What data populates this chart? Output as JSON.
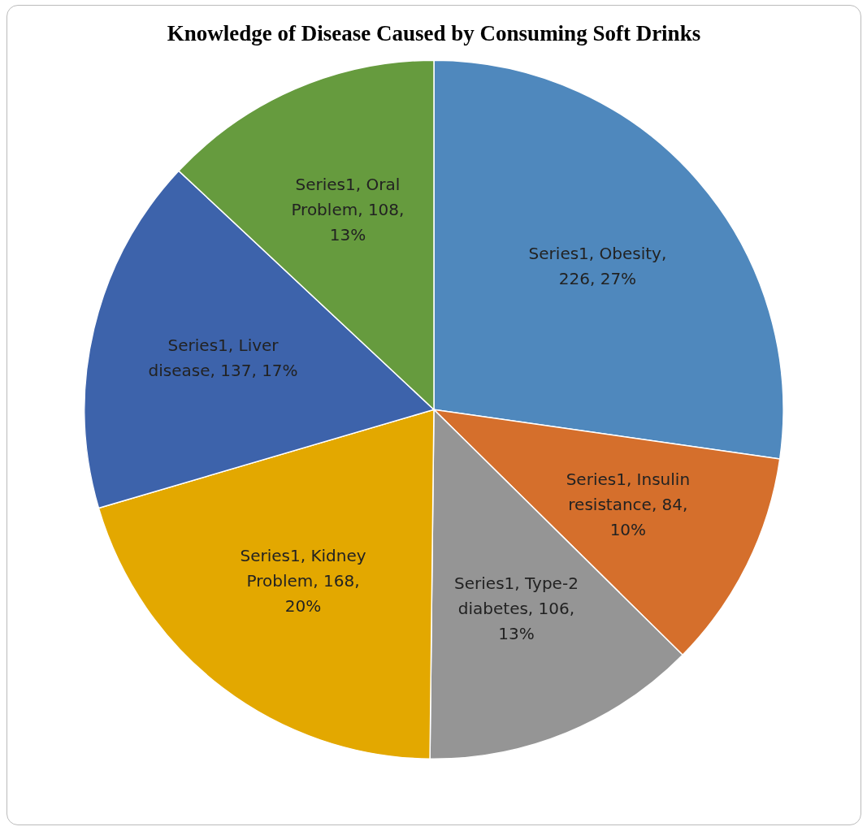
{
  "chart_data": {
    "type": "pie",
    "title": "Knowledge of Disease Caused by Consuming Soft Drinks",
    "series": [
      {
        "values": [
          226,
          84,
          106,
          168,
          137,
          108
        ],
        "colors": [
          "#4f88bd",
          "#d56f2c",
          "#959595",
          "#e3a800",
          "#3d63ab",
          "#669b3e"
        ],
        "value_labels": [
          "Series1, Obesity, 226, 27%",
          "Series1, Insulin resistance, 84, 10%",
          "Series1, Type-2 diabetes, 106, 13%",
          "Series1, Kidney Problem, 168, 20%",
          "Series1, Liver disease, 137, 17%",
          "Series1, Oral Problem, 108, 13%"
        ]
      }
    ],
    "legend": false
  }
}
